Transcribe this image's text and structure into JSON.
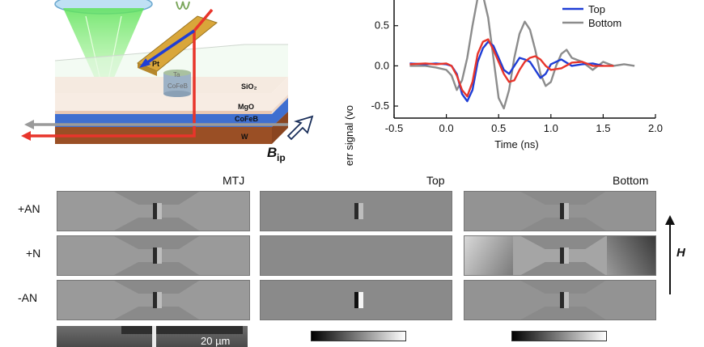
{
  "schematic": {
    "labels": {
      "pt": "Pt",
      "ta": "Ta",
      "cofeb_top": "CoFeB",
      "sio2": "SiO₂",
      "mgo": "MgO",
      "cofeb_bottom": "CoFeB",
      "w": "W",
      "bip": "B",
      "bip_sub": "ip"
    }
  },
  "chart_data": {
    "type": "line",
    "xlabel": "Time (ns)",
    "ylabel": "Polar Kerr signal (vo",
    "xlim": [
      -0.5,
      2.0
    ],
    "ylim": [
      -0.65,
      0.9
    ],
    "xticks": [
      "-0.5",
      "0.0",
      "0.5",
      "1.0",
      "1.5",
      "2.0"
    ],
    "yticks": [
      "-0.5",
      "0.0",
      "0.5"
    ],
    "yticks_values": [
      -0.5,
      0.0,
      0.5
    ],
    "xticks_values": [
      -0.5,
      0.0,
      0.5,
      1.0,
      1.5,
      2.0
    ],
    "legend": {
      "placement": "top-right",
      "entries": [
        "MTJ",
        "Top",
        "Bottom"
      ]
    },
    "series": [
      {
        "name": "MTJ",
        "color": "#e8352b",
        "x": [
          -0.35,
          -0.2,
          -0.1,
          0.0,
          0.05,
          0.1,
          0.15,
          0.2,
          0.25,
          0.3,
          0.35,
          0.4,
          0.45,
          0.5,
          0.55,
          0.6,
          0.65,
          0.7,
          0.75,
          0.8,
          0.85,
          0.9,
          0.95,
          1.0,
          1.1,
          1.2,
          1.3,
          1.4,
          1.5,
          1.6
        ],
        "y": [
          0.02,
          0.03,
          0.02,
          0.03,
          0.0,
          -0.12,
          -0.3,
          -0.38,
          -0.2,
          0.15,
          0.3,
          0.33,
          0.2,
          0.05,
          -0.1,
          -0.2,
          -0.18,
          -0.05,
          0.05,
          0.1,
          0.12,
          0.08,
          0.0,
          -0.05,
          -0.03,
          0.04,
          0.05,
          0.0,
          0.0,
          0.0
        ]
      },
      {
        "name": "Top",
        "color": "#1f3ed6",
        "x": [
          -0.35,
          -0.2,
          -0.1,
          0.0,
          0.05,
          0.1,
          0.15,
          0.2,
          0.25,
          0.3,
          0.35,
          0.4,
          0.45,
          0.5,
          0.55,
          0.6,
          0.65,
          0.7,
          0.75,
          0.8,
          0.85,
          0.9,
          0.95,
          1.0,
          1.1,
          1.2,
          1.3,
          1.4,
          1.5
        ],
        "y": [
          0.03,
          0.02,
          0.03,
          0.02,
          0.0,
          -0.1,
          -0.35,
          -0.44,
          -0.3,
          0.05,
          0.22,
          0.3,
          0.25,
          0.1,
          -0.05,
          -0.1,
          0.0,
          0.1,
          0.08,
          0.05,
          -0.05,
          -0.15,
          -0.1,
          0.02,
          0.08,
          0.0,
          0.02,
          0.03,
          0.0
        ]
      },
      {
        "name": "Bottom",
        "color": "#8c8c8c",
        "x": [
          -0.35,
          -0.2,
          -0.1,
          0.0,
          0.05,
          0.1,
          0.15,
          0.2,
          0.25,
          0.3,
          0.35,
          0.4,
          0.45,
          0.5,
          0.55,
          0.6,
          0.65,
          0.7,
          0.75,
          0.8,
          0.85,
          0.9,
          0.95,
          1.0,
          1.05,
          1.1,
          1.15,
          1.2,
          1.3,
          1.4,
          1.5,
          1.6,
          1.7,
          1.8
        ],
        "y": [
          0.0,
          0.0,
          -0.02,
          -0.05,
          -0.12,
          -0.3,
          -0.18,
          0.1,
          0.5,
          0.85,
          0.88,
          0.6,
          0.1,
          -0.4,
          -0.53,
          -0.3,
          0.1,
          0.4,
          0.55,
          0.45,
          0.2,
          -0.1,
          -0.25,
          -0.2,
          0.0,
          0.15,
          0.2,
          0.1,
          0.05,
          -0.05,
          0.05,
          0.0,
          0.02,
          0.0
        ]
      }
    ]
  },
  "moke": {
    "columns": [
      "MTJ",
      "Top",
      "Bottom"
    ],
    "rows": [
      "+AN",
      "+N",
      "-AN"
    ],
    "field_label": "H",
    "scale_bar": "20 µm"
  }
}
